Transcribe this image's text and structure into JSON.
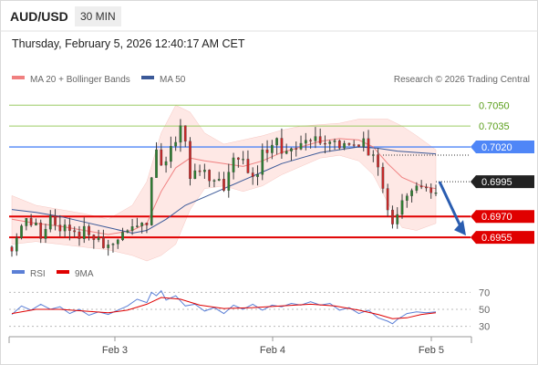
{
  "header": {
    "symbol": "AUD/USD",
    "timeframe": "30 MIN",
    "datetime": "Thursday, February 5, 2026 12:40:17 AM CET"
  },
  "legend": {
    "ma20": "MA 20 + Bollinger Bands",
    "ma50": "MA 50",
    "rsi": "RSI",
    "rsi_ma": "9MA"
  },
  "watermark": "Research © 2026 Trading Central",
  "colors": {
    "up": "#2e7d32",
    "down": "#c62828",
    "candle": "#3d3d3d",
    "ma20": "#f08080",
    "ma50": "#3b5998",
    "band": "#fde0dc",
    "resistance_green": "#9ccc65",
    "resistance_blue": "#4f86f7",
    "support_red": "#e00000",
    "rsi": "#5b7fd6",
    "rsi_ma": "#e00000"
  },
  "chart_data": [
    {
      "type": "candlestick",
      "ylim": [
        0.6938,
        0.7062
      ],
      "x_ticks": [
        "Feb 3",
        "Feb 4",
        "Feb 5"
      ],
      "levels": [
        {
          "value": 0.705,
          "label": "0.7050",
          "style": "resistance_green"
        },
        {
          "value": 0.7035,
          "label": "0.7035",
          "style": "resistance_green"
        },
        {
          "value": 0.702,
          "label": "0.7020",
          "style": "resistance_blue"
        },
        {
          "value": 0.697,
          "label": "0.6970",
          "style": "support_red"
        },
        {
          "value": 0.6955,
          "label": "0.6955",
          "style": "support_red"
        }
      ],
      "last_price": {
        "value": 0.6995,
        "label": "0.6995"
      },
      "forecast_arrow": {
        "from": 0.6995,
        "to": 0.6955,
        "direction": "down"
      },
      "price_path": [
        [
          0,
          0.6948
        ],
        [
          3,
          0.6962
        ],
        [
          6,
          0.6968
        ],
        [
          9,
          0.6972
        ],
        [
          12,
          0.6962
        ],
        [
          16,
          0.6968
        ],
        [
          20,
          0.6958
        ],
        [
          24,
          0.6968
        ],
        [
          28,
          0.6962
        ],
        [
          32,
          0.6958
        ],
        [
          36,
          0.6952
        ],
        [
          40,
          0.6955
        ],
        [
          44,
          0.6958
        ],
        [
          48,
          0.6962
        ],
        [
          51,
          0.6965
        ],
        [
          54,
          0.6972
        ],
        [
          56,
          0.697
        ],
        [
          58,
          0.7005
        ],
        [
          60,
          0.702
        ],
        [
          62,
          0.7005
        ],
        [
          64,
          0.7012
        ],
        [
          66,
          0.702
        ],
        [
          68,
          0.703
        ],
        [
          70,
          0.7042
        ],
        [
          72,
          0.7032
        ],
        [
          74,
          0.7005
        ],
        [
          77,
          0.7005
        ],
        [
          80,
          0.7002
        ],
        [
          83,
          0.7005
        ],
        [
          86,
          0.7003
        ],
        [
          88,
          0.6995
        ],
        [
          90,
          0.7
        ],
        [
          92,
          0.7012
        ],
        [
          95,
          0.7008
        ],
        [
          98,
          0.701
        ],
        [
          101,
          0.7004
        ],
        [
          104,
          0.7018
        ],
        [
          107,
          0.7016
        ],
        [
          110,
          0.7028
        ],
        [
          113,
          0.7022
        ],
        [
          116,
          0.7025
        ],
        [
          119,
          0.7025
        ],
        [
          122,
          0.7022
        ],
        [
          125,
          0.703
        ],
        [
          128,
          0.7026
        ],
        [
          131,
          0.703
        ],
        [
          134,
          0.7024
        ],
        [
          137,
          0.702
        ],
        [
          140,
          0.7022
        ],
        [
          143,
          0.7028
        ],
        [
          146,
          0.703
        ],
        [
          149,
          0.7014
        ],
        [
          152,
          0.7008
        ],
        [
          154,
          0.699
        ],
        [
          156,
          0.6978
        ],
        [
          158,
          0.6972
        ],
        [
          160,
          0.6975
        ],
        [
          162,
          0.699
        ],
        [
          165,
          0.6985
        ],
        [
          168,
          0.6992
        ],
        [
          171,
          0.6995
        ],
        [
          174,
          0.6993
        ],
        [
          176,
          0.6995
        ]
      ],
      "ma20": [
        [
          0,
          0.6968
        ],
        [
          10,
          0.6965
        ],
        [
          20,
          0.6963
        ],
        [
          30,
          0.696
        ],
        [
          40,
          0.6957
        ],
        [
          50,
          0.696
        ],
        [
          56,
          0.6965
        ],
        [
          62,
          0.6988
        ],
        [
          68,
          0.7005
        ],
        [
          74,
          0.7012
        ],
        [
          80,
          0.701
        ],
        [
          88,
          0.7008
        ],
        [
          96,
          0.7006
        ],
        [
          104,
          0.701
        ],
        [
          112,
          0.7016
        ],
        [
          120,
          0.702
        ],
        [
          128,
          0.7024
        ],
        [
          136,
          0.7026
        ],
        [
          144,
          0.7025
        ],
        [
          150,
          0.702
        ],
        [
          156,
          0.7008
        ],
        [
          162,
          0.6998
        ],
        [
          170,
          0.6992
        ],
        [
          176,
          0.699
        ]
      ],
      "ma50": [
        [
          0,
          0.6975
        ],
        [
          10,
          0.6973
        ],
        [
          20,
          0.697
        ],
        [
          30,
          0.6966
        ],
        [
          40,
          0.6962
        ],
        [
          50,
          0.6958
        ],
        [
          56,
          0.696
        ],
        [
          64,
          0.6968
        ],
        [
          72,
          0.6978
        ],
        [
          80,
          0.6984
        ],
        [
          88,
          0.699
        ],
        [
          96,
          0.6996
        ],
        [
          104,
          0.7002
        ],
        [
          112,
          0.7008
        ],
        [
          120,
          0.7012
        ],
        [
          128,
          0.7016
        ],
        [
          136,
          0.7018
        ],
        [
          144,
          0.702
        ],
        [
          152,
          0.7019
        ],
        [
          160,
          0.7017
        ],
        [
          168,
          0.7016
        ],
        [
          176,
          0.7015
        ]
      ],
      "bb_upper": [
        [
          0,
          0.6985
        ],
        [
          10,
          0.6978
        ],
        [
          20,
          0.6975
        ],
        [
          30,
          0.6972
        ],
        [
          40,
          0.6968
        ],
        [
          50,
          0.6978
        ],
        [
          56,
          0.6995
        ],
        [
          62,
          0.703
        ],
        [
          68,
          0.705
        ],
        [
          74,
          0.7045
        ],
        [
          80,
          0.703
        ],
        [
          88,
          0.7022
        ],
        [
          96,
          0.7025
        ],
        [
          104,
          0.7028
        ],
        [
          112,
          0.7032
        ],
        [
          120,
          0.7035
        ],
        [
          128,
          0.7036
        ],
        [
          136,
          0.7037
        ],
        [
          144,
          0.704
        ],
        [
          150,
          0.704
        ],
        [
          156,
          0.704
        ],
        [
          162,
          0.7035
        ],
        [
          168,
          0.7028
        ],
        [
          176,
          0.7018
        ]
      ],
      "bb_lower": [
        [
          0,
          0.695
        ],
        [
          10,
          0.6952
        ],
        [
          20,
          0.695
        ],
        [
          30,
          0.6948
        ],
        [
          40,
          0.6946
        ],
        [
          50,
          0.6942
        ],
        [
          56,
          0.6938
        ],
        [
          62,
          0.6942
        ],
        [
          68,
          0.695
        ],
        [
          74,
          0.6975
        ],
        [
          80,
          0.699
        ],
        [
          88,
          0.6992
        ],
        [
          96,
          0.6988
        ],
        [
          104,
          0.6992
        ],
        [
          112,
          0.7
        ],
        [
          120,
          0.7006
        ],
        [
          128,
          0.7012
        ],
        [
          136,
          0.7014
        ],
        [
          144,
          0.701
        ],
        [
          150,
          0.7
        ],
        [
          156,
          0.698
        ],
        [
          162,
          0.6962
        ],
        [
          168,
          0.696
        ],
        [
          176,
          0.6965
        ]
      ]
    },
    {
      "type": "line",
      "title": "RSI",
      "ylim": [
        22,
        78
      ],
      "y_ticks": [
        70,
        50,
        30
      ],
      "rsi": [
        [
          0,
          44
        ],
        [
          4,
          54
        ],
        [
          8,
          49
        ],
        [
          12,
          56
        ],
        [
          16,
          50
        ],
        [
          20,
          53
        ],
        [
          24,
          45
        ],
        [
          28,
          50
        ],
        [
          32,
          43
        ],
        [
          36,
          47
        ],
        [
          40,
          44
        ],
        [
          44,
          49
        ],
        [
          48,
          54
        ],
        [
          52,
          62
        ],
        [
          56,
          58
        ],
        [
          58,
          70
        ],
        [
          60,
          66
        ],
        [
          62,
          72
        ],
        [
          64,
          61
        ],
        [
          68,
          66
        ],
        [
          70,
          60
        ],
        [
          72,
          54
        ],
        [
          76,
          56
        ],
        [
          80,
          48
        ],
        [
          84,
          52
        ],
        [
          88,
          45
        ],
        [
          92,
          55
        ],
        [
          96,
          50
        ],
        [
          100,
          56
        ],
        [
          104,
          49
        ],
        [
          108,
          55
        ],
        [
          112,
          53
        ],
        [
          116,
          57
        ],
        [
          120,
          55
        ],
        [
          124,
          59
        ],
        [
          128,
          55
        ],
        [
          132,
          57
        ],
        [
          136,
          49
        ],
        [
          140,
          52
        ],
        [
          144,
          45
        ],
        [
          148,
          49
        ],
        [
          152,
          40
        ],
        [
          156,
          36
        ],
        [
          158,
          33
        ],
        [
          160,
          38
        ],
        [
          164,
          45
        ],
        [
          168,
          47
        ],
        [
          172,
          46
        ],
        [
          176,
          47
        ]
      ],
      "rsi_ma": [
        [
          0,
          45
        ],
        [
          10,
          50
        ],
        [
          20,
          50
        ],
        [
          30,
          48
        ],
        [
          40,
          46
        ],
        [
          48,
          49
        ],
        [
          56,
          56
        ],
        [
          62,
          64
        ],
        [
          70,
          62
        ],
        [
          78,
          55
        ],
        [
          88,
          51
        ],
        [
          100,
          52
        ],
        [
          112,
          54
        ],
        [
          124,
          56
        ],
        [
          134,
          54
        ],
        [
          144,
          49
        ],
        [
          152,
          44
        ],
        [
          158,
          39
        ],
        [
          164,
          40
        ],
        [
          170,
          44
        ],
        [
          176,
          46
        ]
      ]
    }
  ]
}
